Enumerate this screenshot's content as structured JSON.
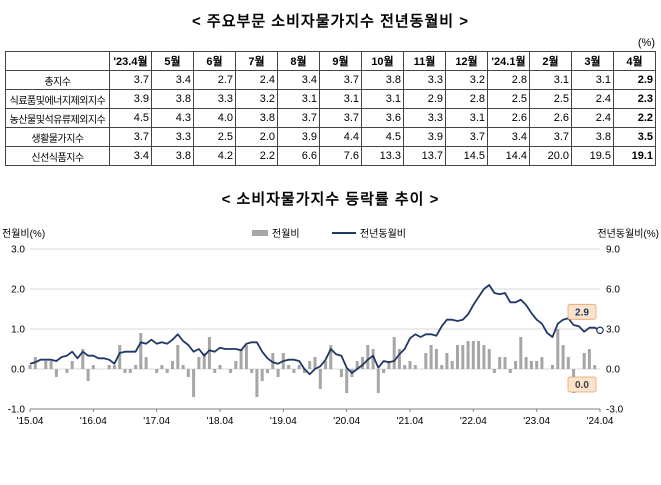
{
  "page": {
    "table_title": "< 주요부문 소비자물가지수 전년동월비 >",
    "unit_label": "(%)",
    "chart_title": "< 소비자물가지수 등락률 추이 >"
  },
  "table": {
    "columns": [
      "'23.4월",
      "5월",
      "6월",
      "7월",
      "8월",
      "9월",
      "10월",
      "11월",
      "12월",
      "'24.1월",
      "2월",
      "3월",
      "4월"
    ],
    "rows": [
      {
        "label": "총지수",
        "values": [
          3.7,
          3.4,
          2.7,
          2.4,
          3.4,
          3.7,
          3.8,
          3.3,
          3.2,
          2.8,
          3.1,
          3.1,
          2.9
        ]
      },
      {
        "label": "식료품및에너지제외지수",
        "values": [
          3.9,
          3.8,
          3.3,
          3.2,
          3.1,
          3.1,
          3.1,
          2.9,
          2.8,
          2.5,
          2.5,
          2.4,
          2.3
        ]
      },
      {
        "label": "농산물및석유류제외지수",
        "values": [
          4.5,
          4.3,
          4.0,
          3.8,
          3.7,
          3.7,
          3.6,
          3.3,
          3.1,
          2.6,
          2.6,
          2.4,
          2.2
        ]
      },
      {
        "label": "생활물가지수",
        "values": [
          3.7,
          3.3,
          2.5,
          2.0,
          3.9,
          4.4,
          4.5,
          3.9,
          3.7,
          3.4,
          3.7,
          3.8,
          3.5
        ]
      },
      {
        "label": "신선식품지수",
        "values": [
          3.4,
          3.8,
          4.2,
          2.2,
          6.6,
          7.6,
          13.3,
          13.7,
          14.5,
          14.4,
          20.0,
          19.5,
          19.1
        ]
      }
    ]
  },
  "chart_data": {
    "type": "bar+line",
    "title": "< 소비자물가지수 등락률 추이 >",
    "left_axis": {
      "label": "전월비(%)",
      "ticks": [
        3.0,
        2.0,
        1.0,
        0.0,
        -1.0
      ],
      "min": -1.0,
      "max": 3.0
    },
    "right_axis": {
      "label": "전년동월비(%)",
      "ticks": [
        9.0,
        6.0,
        3.0,
        0.0,
        -3.0
      ],
      "min": -3.0,
      "max": 9.0
    },
    "x_tick_labels": [
      "'15.04",
      "'16.04",
      "'17.04",
      "'18.04",
      "'19.04",
      "'20.04",
      "'21.04",
      "'22.04",
      "'23.04",
      "'24.04"
    ],
    "x_tick_indices": [
      0,
      12,
      24,
      36,
      48,
      60,
      72,
      84,
      96,
      108
    ],
    "grid": true,
    "legend_position": "top-center",
    "series": [
      {
        "name": "전월비",
        "type": "bar",
        "axis": "left",
        "color": "#a6a6a6",
        "values": [
          0.1,
          0.3,
          0.0,
          0.2,
          0.2,
          -0.2,
          0.0,
          -0.1,
          0.2,
          0.0,
          0.5,
          -0.3,
          0.1,
          0.0,
          0.0,
          0.1,
          0.1,
          0.6,
          -0.1,
          -0.1,
          0.1,
          0.9,
          0.3,
          0.0,
          -0.1,
          0.1,
          -0.1,
          0.2,
          0.6,
          0.1,
          -0.2,
          -0.7,
          0.3,
          0.4,
          0.8,
          -0.1,
          0.1,
          0.0,
          -0.1,
          0.2,
          0.5,
          0.6,
          -0.1,
          -0.7,
          -0.3,
          -0.1,
          0.4,
          -0.2,
          0.4,
          0.1,
          -0.1,
          0.1,
          -0.1,
          0.2,
          0.3,
          -0.5,
          0.2,
          0.6,
          0.0,
          -0.2,
          -0.6,
          -0.2,
          0.2,
          0.3,
          0.6,
          0.5,
          -0.6,
          -0.1,
          0.2,
          0.8,
          0.5,
          0.1,
          0.2,
          0.1,
          0.0,
          0.4,
          0.6,
          0.5,
          0.1,
          0.4,
          0.2,
          0.6,
          0.6,
          0.7,
          0.7,
          0.7,
          0.6,
          0.5,
          -0.1,
          0.3,
          0.3,
          -0.1,
          0.2,
          0.8,
          0.3,
          0.2,
          0.2,
          0.3,
          0.0,
          0.1,
          1.0,
          0.6,
          0.3,
          -0.6,
          0.0,
          0.4,
          0.5,
          0.1,
          0.0
        ]
      },
      {
        "name": "전년동월비",
        "type": "line",
        "axis": "right",
        "color": "#1f3864",
        "values": [
          0.4,
          0.5,
          0.7,
          0.7,
          0.7,
          0.6,
          0.9,
          1.0,
          1.3,
          0.8,
          1.3,
          1.0,
          1.0,
          0.8,
          0.8,
          0.7,
          0.4,
          1.2,
          1.3,
          1.3,
          1.3,
          2.0,
          1.9,
          2.2,
          1.9,
          2.0,
          1.9,
          2.2,
          2.6,
          2.1,
          1.8,
          1.3,
          1.5,
          1.0,
          1.4,
          1.3,
          1.6,
          1.5,
          1.5,
          1.5,
          1.4,
          1.9,
          2.0,
          2.0,
          1.3,
          0.8,
          0.5,
          0.4,
          0.6,
          0.7,
          0.7,
          0.6,
          0.0,
          -0.4,
          0.0,
          0.2,
          0.7,
          1.5,
          1.1,
          1.0,
          0.1,
          -0.3,
          0.0,
          0.3,
          0.7,
          1.0,
          0.1,
          0.6,
          0.5,
          0.6,
          1.1,
          1.5,
          2.3,
          2.6,
          2.4,
          2.6,
          2.6,
          2.5,
          3.2,
          3.7,
          3.7,
          3.6,
          3.7,
          4.1,
          4.8,
          5.4,
          6.0,
          6.3,
          5.7,
          5.6,
          5.7,
          5.0,
          5.0,
          5.2,
          4.8,
          4.2,
          3.7,
          3.4,
          2.7,
          2.4,
          3.4,
          3.7,
          3.8,
          3.3,
          3.2,
          2.8,
          3.1,
          3.1,
          2.9
        ]
      }
    ],
    "annotations": [
      {
        "text": "2.9",
        "series": "전년동월비",
        "fill": "#fbe2cc",
        "border": "#e8a36a",
        "text_color": "#1f3864"
      },
      {
        "text": "0.0",
        "series": "전월비",
        "fill": "#fbe2cc",
        "border": "#e8a36a",
        "text_color": "#404040"
      }
    ]
  }
}
